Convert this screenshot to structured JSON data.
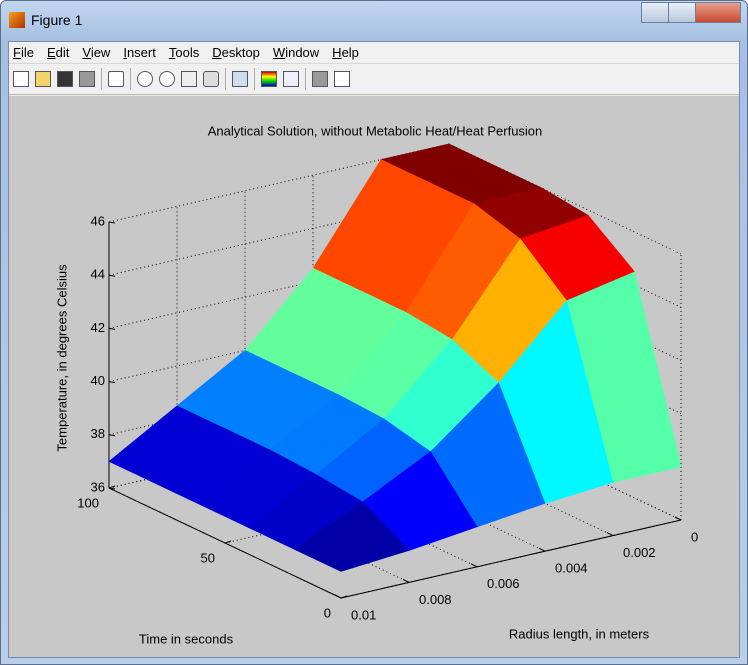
{
  "window": {
    "title": "Figure 1"
  },
  "menu": [
    "File",
    "Edit",
    "View",
    "Insert",
    "Tools",
    "Desktop",
    "Window",
    "Help"
  ],
  "chart_data": {
    "type": "surface",
    "title": "Analytical Solution, without Metabolic Heat/Heat Perfusion",
    "xlabel": "Radius length, in meters",
    "ylabel": "Time in seconds",
    "zlabel": "Temperature, in degrees Celsius",
    "x": [
      0,
      0.002,
      0.004,
      0.006,
      0.008,
      0.01
    ],
    "y": [
      0,
      20,
      40,
      60,
      80,
      100
    ],
    "z": [
      [
        38,
        38,
        37.8,
        37.5,
        37.2,
        37
      ],
      [
        44.5,
        44,
        41.5,
        39.5,
        38.2,
        37
      ],
      [
        45.8,
        45.5,
        42.3,
        39.9,
        38.4,
        37
      ],
      [
        46,
        46,
        42.5,
        40,
        38.5,
        37
      ],
      [
        46,
        46,
        42.5,
        40,
        38.5,
        37
      ],
      [
        46,
        46,
        42.5,
        40,
        38.5,
        37
      ]
    ],
    "colormap": "jet",
    "xlim": [
      0,
      0.01
    ],
    "xticks": [
      0,
      0.002,
      0.004,
      0.006,
      0.008,
      0.01
    ],
    "ylim": [
      0,
      100
    ],
    "yticks": [
      0,
      50,
      100
    ],
    "zlim": [
      36,
      46
    ],
    "zticks": [
      36,
      38,
      40,
      42,
      44,
      46
    ],
    "grid": true
  }
}
